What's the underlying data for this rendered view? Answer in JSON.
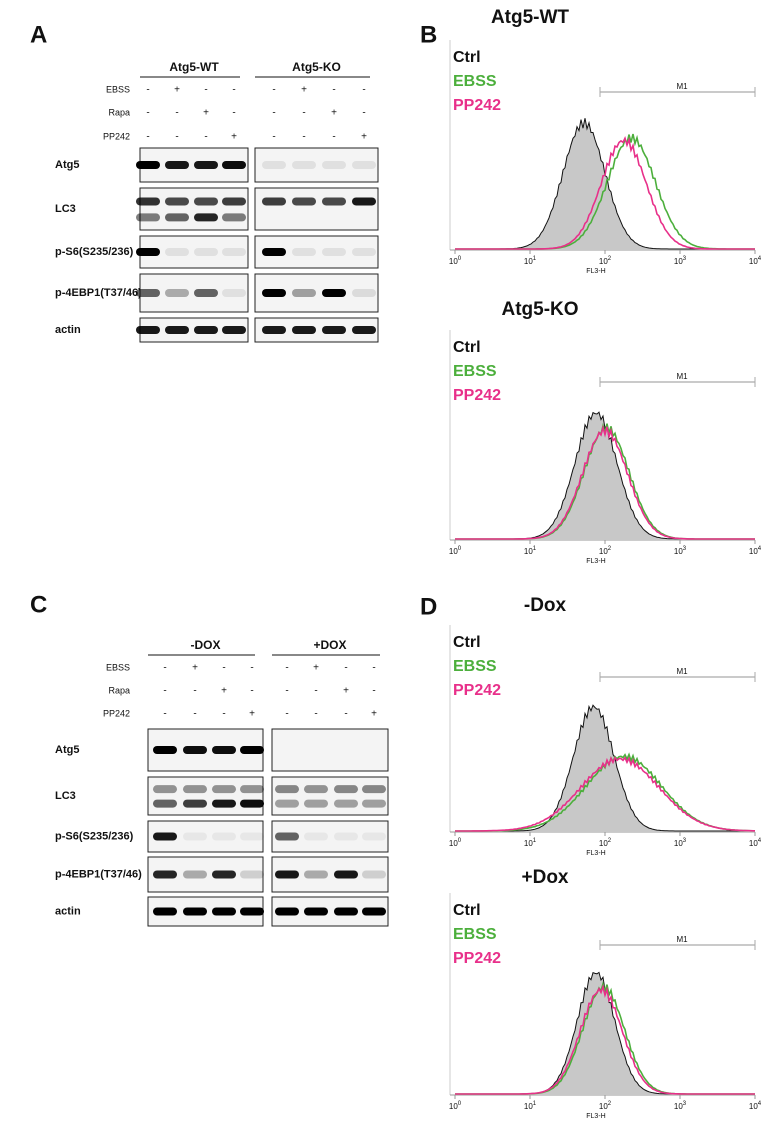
{
  "panels": [
    {
      "label": "A",
      "groups": [
        "Atg5-WT",
        "Atg5-KO"
      ],
      "treatments": [
        {
          "name": "EBSS",
          "signs": [
            "-",
            "+",
            "-",
            "-",
            "-",
            "+",
            "-",
            "-"
          ]
        },
        {
          "name": "Rapa",
          "signs": [
            "-",
            "-",
            "+",
            "-",
            "-",
            "-",
            "+",
            "-"
          ]
        },
        {
          "name": "PP242",
          "signs": [
            "-",
            "-",
            "-",
            "+",
            "-",
            "-",
            "-",
            "+"
          ]
        }
      ],
      "blots": [
        "Atg5",
        "LC3",
        "p-S6(S235/236)",
        "p-4EBP1(T37/46)",
        "actin"
      ]
    },
    {
      "label": "C",
      "groups": [
        "-DOX",
        "+DOX"
      ],
      "treatments": [
        {
          "name": "EBSS",
          "signs": [
            "-",
            "+",
            "-",
            "-",
            "-",
            "+",
            "-",
            "-"
          ]
        },
        {
          "name": "Rapa",
          "signs": [
            "-",
            "-",
            "+",
            "-",
            "-",
            "-",
            "+",
            "-"
          ]
        },
        {
          "name": "PP242",
          "signs": [
            "-",
            "-",
            "-",
            "+",
            "-",
            "-",
            "-",
            "+"
          ]
        }
      ],
      "blots": [
        "Atg5",
        "LC3",
        "p-S6(S235/236)",
        "p-4EBP1(T37/46)",
        "actin"
      ]
    }
  ],
  "histograms": [
    {
      "label": "B",
      "title": "Atg5-WT",
      "legend": [
        "Ctrl",
        "EBSS",
        "PP242"
      ],
      "gate": "M1",
      "axis_label": "FL3-H",
      "tick_base": "10",
      "tick_exponents": [
        "0",
        "1",
        "2",
        "3",
        "4"
      ]
    },
    {
      "title": "Atg5-KO",
      "legend": [
        "Ctrl",
        "EBSS",
        "PP242"
      ],
      "gate": "M1",
      "axis_label": "FL3-H",
      "tick_base": "10",
      "tick_exponents": [
        "0",
        "1",
        "2",
        "3",
        "4"
      ]
    },
    {
      "label": "D",
      "title": "-Dox",
      "legend": [
        "Ctrl",
        "EBSS",
        "PP242"
      ],
      "gate": "M1",
      "axis_label": "FL3-H",
      "tick_base": "10",
      "tick_exponents": [
        "0",
        "1",
        "2",
        "3",
        "4"
      ]
    },
    {
      "title": "+Dox",
      "legend": [
        "Ctrl",
        "EBSS",
        "PP242"
      ],
      "gate": "M1",
      "axis_label": "FL3-H",
      "tick_base": "10",
      "tick_exponents": [
        "0",
        "1",
        "2",
        "3",
        "4"
      ]
    }
  ]
}
